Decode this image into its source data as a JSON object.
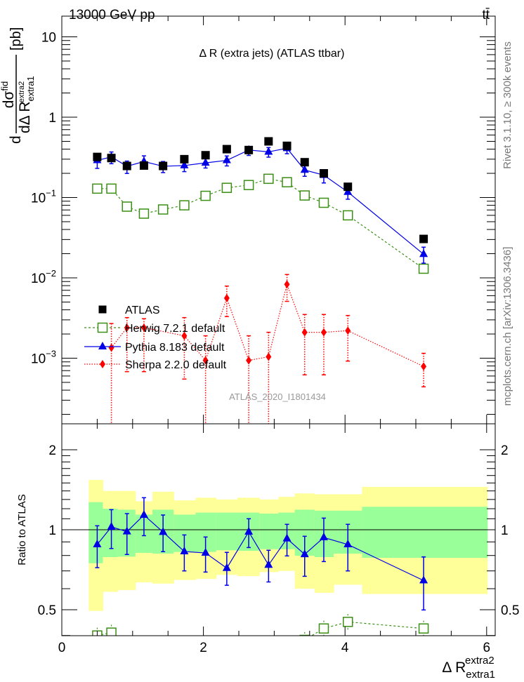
{
  "header": {
    "energy": "13000 GeV pp",
    "process": "tt̄"
  },
  "side_labels": {
    "rivet": "Rivet 3.1.10, ≥ 300k events",
    "mcplots": "mcplots.cern.ch [arXiv:1306.3436]"
  },
  "colors": {
    "atlas": "#000000",
    "herwig": "#3a8f14",
    "pythia": "#0000e6",
    "sherpa": "#ff0000",
    "stat_band": "#99ff99",
    "total_band": "#ffff99"
  },
  "chart_data": [
    {
      "type": "line",
      "title": "Δ R (extra jets) (ATLAS ttbar)",
      "watermark": "ATLAS_2020_I1801434",
      "ylabel": {
        "prefix": "d",
        "numerator": "dσ",
        "num_sup": "fid",
        "denominator": "dΔ R",
        "den_sub": "extra1",
        "den_sup": "extra2",
        "unit": "[pb]"
      },
      "yscale": "log",
      "xlim": [
        0,
        6.12
      ],
      "ylim": [
        0.000155,
        17.9
      ],
      "y_ticks": [
        {
          "value": 10,
          "base": "10",
          "exp": ""
        },
        {
          "value": 1,
          "base": "1",
          "exp": ""
        },
        {
          "value": 0.1,
          "base": "10",
          "exp": "−1"
        },
        {
          "value": 0.01,
          "base": "10",
          "exp": "−2"
        },
        {
          "value": 0.001,
          "base": "10",
          "exp": "−3"
        }
      ],
      "legend_position": "center-left",
      "legend": [
        {
          "key": "atlas",
          "label": "ATLAS"
        },
        {
          "key": "herwig",
          "label": "Herwig 7.2.1 default"
        },
        {
          "key": "pythia",
          "label": "Pythia 8.183 default"
        },
        {
          "key": "sherpa",
          "label": "Sherpa 2.2.0 default"
        }
      ],
      "bin_edges": [
        0.38,
        0.58,
        0.79,
        1.04,
        1.28,
        1.58,
        1.89,
        2.18,
        2.48,
        2.79,
        3.06,
        3.29,
        3.57,
        3.84,
        4.24,
        6.01
      ],
      "x": [
        0.5,
        0.7,
        0.92,
        1.16,
        1.43,
        1.73,
        2.03,
        2.33,
        2.64,
        2.92,
        3.18,
        3.43,
        3.7,
        4.04,
        5.11
      ],
      "series": {
        "atlas": {
          "values": [
            0.32,
            0.31,
            0.247,
            0.25,
            0.247,
            0.3,
            0.336,
            0.4,
            0.39,
            0.5,
            0.44,
            0.275,
            0.2,
            0.136,
            0.0305
          ]
        },
        "herwig": {
          "values": [
            0.129,
            0.129,
            0.077,
            0.063,
            0.071,
            0.08,
            0.105,
            0.132,
            0.143,
            0.171,
            0.155,
            0.106,
            0.086,
            0.06,
            0.013
          ]
        },
        "pythia": {
          "values": [
            0.29,
            0.32,
            0.245,
            0.28,
            0.245,
            0.25,
            0.27,
            0.29,
            0.39,
            0.37,
            0.41,
            0.22,
            0.19,
            0.117,
            0.0197
          ]
        },
        "sherpa": {
          "x": [
            0.7,
            0.92,
            1.16,
            1.73,
            2.03,
            2.33,
            2.64,
            2.92,
            3.18,
            3.43,
            3.7,
            4.04,
            5.11
          ],
          "values": [
            0.00135,
            0.0024,
            0.0024,
            0.0019,
            0.00094,
            0.0056,
            0.00094,
            0.00104,
            0.0083,
            0.0021,
            0.0021,
            0.0022,
            0.00079
          ],
          "err_low": [
            1e-05,
            0.00068,
            0.00068,
            0.00055,
            1e-05,
            0.0033,
            1e-05,
            1e-05,
            0.0051,
            0.00062,
            0.00062,
            0.00092,
            0.00044
          ],
          "err_high": [
            0.0027,
            0.0032,
            0.0031,
            0.0032,
            0.0019,
            0.0079,
            0.0019,
            0.0021,
            0.011,
            0.0035,
            0.0035,
            0.0034,
            0.00115
          ]
        }
      }
    },
    {
      "type": "line",
      "ylabel": "Ratio to ATLAS",
      "xlabel": {
        "base": "Δ R",
        "sub": "extra1",
        "sup": "extra2"
      },
      "yscale": "log2",
      "xlim": [
        0,
        6.12
      ],
      "ylim": [
        0.4,
        2.49
      ],
      "x_ticks": [
        {
          "value": 0,
          "label": "0"
        },
        {
          "value": 2,
          "label": "2"
        },
        {
          "value": 4,
          "label": "4"
        },
        {
          "value": 6,
          "label": "6"
        }
      ],
      "y_ticks": [
        {
          "value": 2,
          "label": "2"
        },
        {
          "value": 1,
          "label": "1"
        },
        {
          "value": 0.5,
          "label": "0.5"
        }
      ],
      "reference_line": 1,
      "bands": {
        "total_low": [
          0.495,
          0.584,
          0.593,
          0.634,
          0.627,
          0.647,
          0.653,
          0.676,
          0.669,
          0.693,
          0.7,
          0.6,
          0.579,
          0.621,
          0.573
        ],
        "total_high": [
          1.54,
          1.4,
          1.4,
          1.28,
          1.39,
          1.29,
          1.32,
          1.3,
          1.32,
          1.3,
          1.33,
          1.37,
          1.36,
          1.36,
          1.45
        ],
        "stat_low": [
          0.748,
          0.789,
          0.792,
          0.818,
          0.813,
          0.825,
          0.825,
          0.837,
          0.833,
          0.845,
          0.845,
          0.798,
          0.789,
          0.813,
          0.784
        ],
        "stat_high": [
          1.27,
          1.2,
          1.19,
          1.14,
          1.19,
          1.14,
          1.16,
          1.16,
          1.16,
          1.15,
          1.16,
          1.19,
          1.18,
          1.18,
          1.22
        ]
      },
      "pythia": {
        "values": [
          0.88,
          1.025,
          0.984,
          1.136,
          0.98,
          0.828,
          0.818,
          0.717,
          0.982,
          0.737,
          0.926,
          0.808,
          0.935,
          0.88,
          0.644
        ],
        "err_low": [
          0.72,
          0.85,
          0.807,
          0.95,
          0.827,
          0.7,
          0.693,
          0.618,
          0.857,
          0.636,
          0.797,
          0.668,
          0.759,
          0.7,
          0.499
        ],
        "err_high": [
          1.035,
          1.19,
          1.15,
          1.32,
          1.136,
          0.956,
          0.939,
          0.822,
          1.1,
          0.837,
          1.048,
          0.945,
          1.106,
          1.048,
          0.79
        ]
      },
      "herwig": {
        "values": [
          0.4,
          0.41,
          0.31,
          0.25,
          0.29,
          0.27,
          0.31,
          0.33,
          0.37,
          0.34,
          0.35,
          0.385,
          0.425,
          0.45,
          0.425
        ]
      }
    }
  ]
}
